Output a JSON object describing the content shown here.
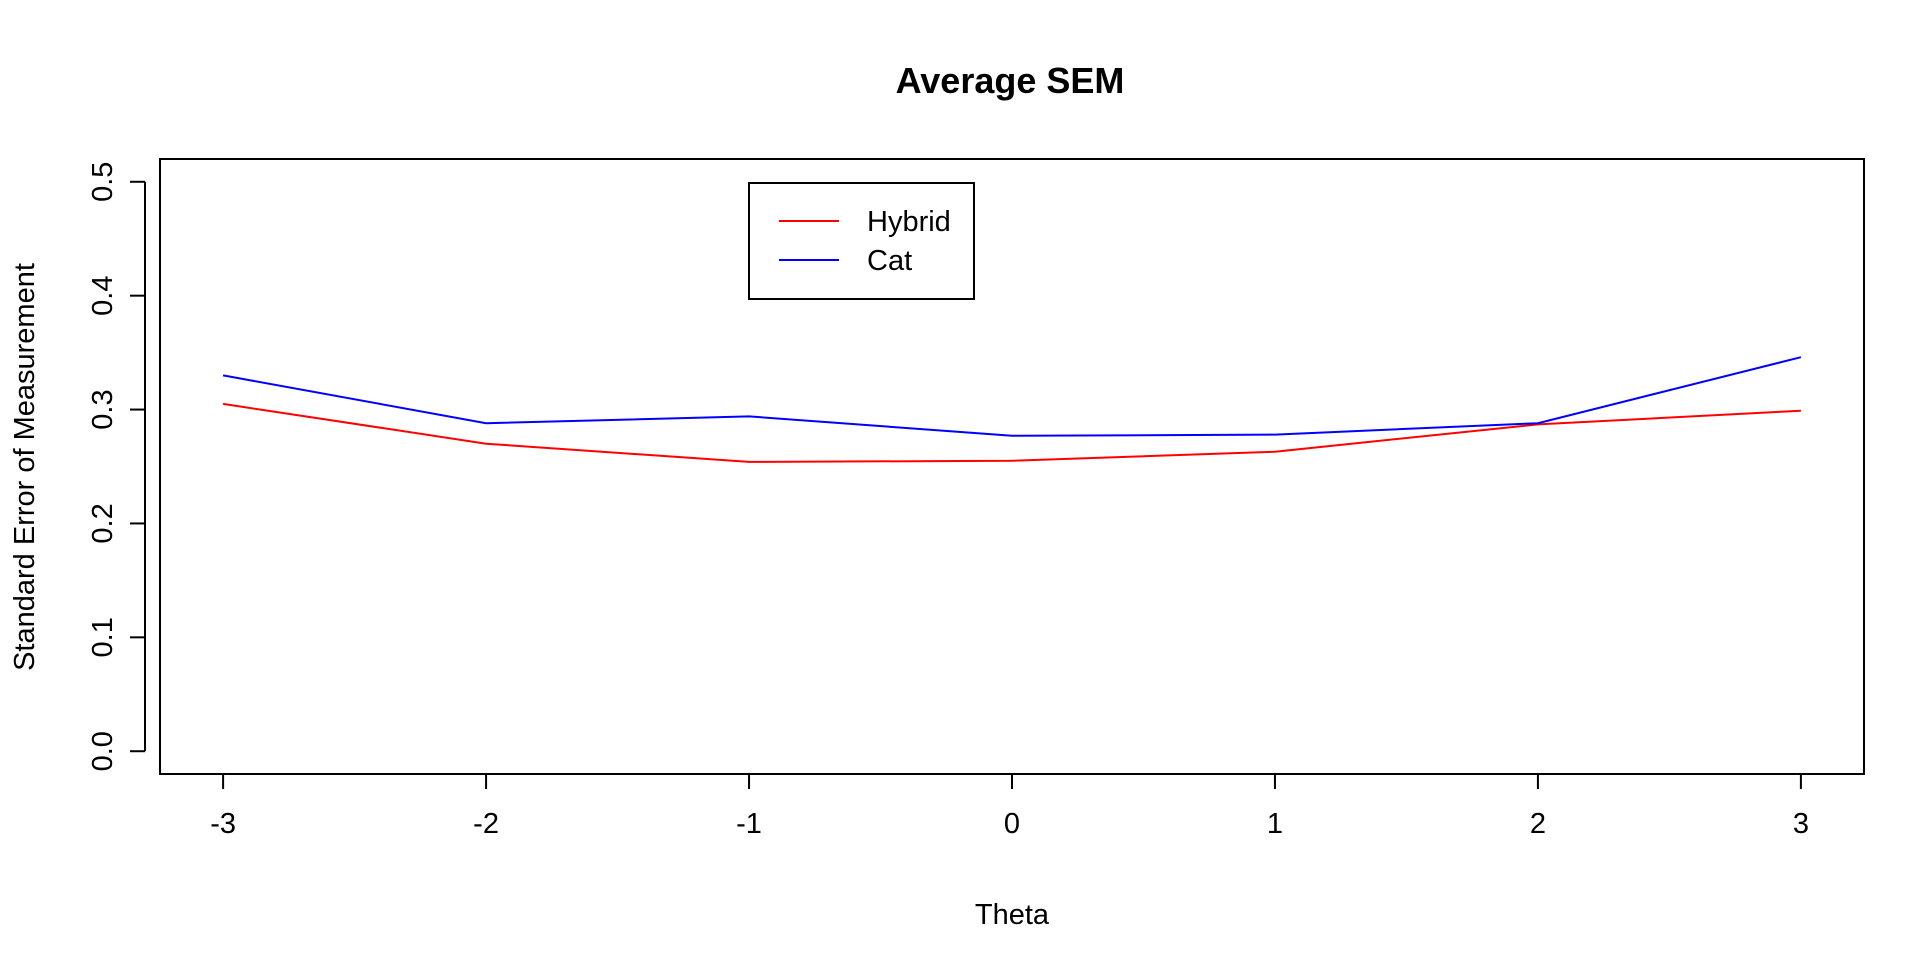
{
  "chart_data": {
    "type": "line",
    "title": "Average SEM",
    "xlabel": "Theta",
    "ylabel": "Standard Error of Measurement",
    "x": [
      -3,
      -2,
      -1,
      0,
      1,
      2,
      3
    ],
    "xticks": [
      "-3",
      "-2",
      "-1",
      "0",
      "1",
      "2",
      "3"
    ],
    "yticks": [
      "0.0",
      "0.1",
      "0.2",
      "0.3",
      "0.4",
      "0.5"
    ],
    "xlim": [
      -3.24,
      3.24
    ],
    "ylim": [
      -0.02,
      0.52
    ],
    "grid": false,
    "legend_position": "top-center",
    "series": [
      {
        "name": "Hybrid",
        "color": "#ff0000",
        "values": [
          0.305,
          0.27,
          0.254,
          0.255,
          0.263,
          0.287,
          0.299
        ]
      },
      {
        "name": "Cat",
        "color": "#0000ff",
        "values": [
          0.33,
          0.288,
          0.294,
          0.277,
          0.278,
          0.288,
          0.346
        ]
      }
    ]
  }
}
